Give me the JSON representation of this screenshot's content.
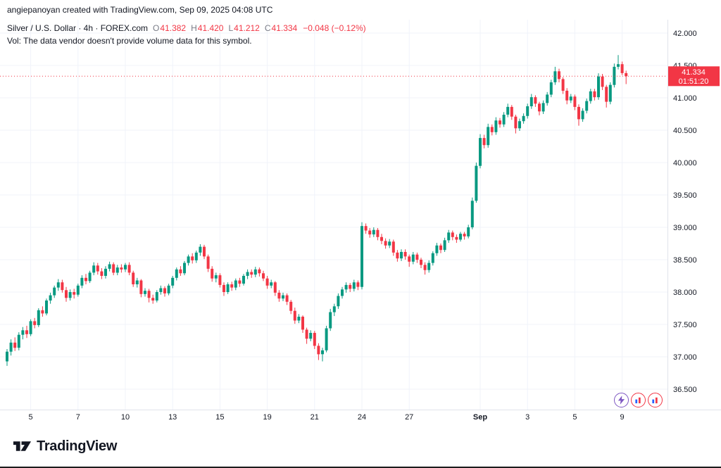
{
  "topbar": {
    "attribution": "angiepanoyan created with TradingView.com, Sep 09, 2025 04:08 UTC"
  },
  "legend": {
    "title": "Silver / U.S. Dollar · 4h · FOREX.com",
    "ohlc": [
      {
        "key": "O",
        "value": "41.382"
      },
      {
        "key": "H",
        "value": "41.420"
      },
      {
        "key": "L",
        "value": "41.212"
      },
      {
        "key": "C",
        "value": "41.334"
      }
    ],
    "change": "−0.048 (−0.12%)",
    "vol_note": "Vol: The data vendor doesn't provide volume data for this symbol."
  },
  "price_axis": {
    "labels": [
      {
        "p": 42.0,
        "t": "42.000"
      },
      {
        "p": 41.5,
        "t": "41.500"
      },
      {
        "p": 41.0,
        "t": "41.000"
      },
      {
        "p": 40.5,
        "t": "40.500"
      },
      {
        "p": 40.0,
        "t": "40.000"
      },
      {
        "p": 39.5,
        "t": "39.500"
      },
      {
        "p": 39.0,
        "t": "39.000"
      },
      {
        "p": 38.5,
        "t": "38.500"
      },
      {
        "p": 38.0,
        "t": "38.000"
      },
      {
        "p": 37.5,
        "t": "37.500"
      },
      {
        "p": 37.0,
        "t": "37.000"
      },
      {
        "p": 36.5,
        "t": "36.500"
      }
    ]
  },
  "price_badge": {
    "price": "41.334",
    "countdown": "01:51:20",
    "color": "#f23645"
  },
  "time_axis": {
    "labels": [
      {
        "i": 6,
        "t": "5"
      },
      {
        "i": 18,
        "t": "7"
      },
      {
        "i": 30,
        "t": "10"
      },
      {
        "i": 42,
        "t": "13"
      },
      {
        "i": 54,
        "t": "15"
      },
      {
        "i": 66,
        "t": "19"
      },
      {
        "i": 78,
        "t": "21"
      },
      {
        "i": 90,
        "t": "24"
      },
      {
        "i": 102,
        "t": "27"
      },
      {
        "i": 120,
        "t": "Sep",
        "bold": true
      },
      {
        "i": 132,
        "t": "3"
      },
      {
        "i": 144,
        "t": "5"
      },
      {
        "i": 156,
        "t": "9"
      }
    ]
  },
  "chart_data": {
    "type": "candlestick",
    "symbol": "Silver / U.S. Dollar",
    "timeframe": "4h",
    "exchange": "FOREX.com",
    "up_color": "#089981",
    "down_color": "#f23645",
    "grid_color": "#f0f3fa",
    "last_price": 41.334,
    "last_ohlc": {
      "open": 41.382,
      "high": 41.42,
      "low": 41.212,
      "close": 41.334
    },
    "change": -0.048,
    "change_pct": -0.12,
    "y_range": [
      36.185,
      42.207
    ],
    "gridlines": [
      36.5,
      37.0,
      37.5,
      38.0,
      38.5,
      39.0,
      39.5,
      40.0,
      40.5,
      41.0,
      41.5,
      42.0
    ],
    "candles": [
      [
        36.93,
        37.12,
        36.86,
        37.08
      ],
      [
        37.08,
        37.27,
        37.02,
        37.22
      ],
      [
        37.22,
        37.3,
        37.09,
        37.14
      ],
      [
        37.14,
        37.38,
        37.1,
        37.34
      ],
      [
        37.34,
        37.46,
        37.27,
        37.41
      ],
      [
        37.41,
        37.48,
        37.29,
        37.35
      ],
      [
        37.35,
        37.58,
        37.32,
        37.55
      ],
      [
        37.55,
        37.6,
        37.44,
        37.49
      ],
      [
        37.49,
        37.75,
        37.46,
        37.72
      ],
      [
        37.72,
        37.78,
        37.62,
        37.67
      ],
      [
        37.67,
        37.9,
        37.64,
        37.87
      ],
      [
        37.87,
        37.99,
        37.82,
        37.95
      ],
      [
        37.95,
        38.1,
        37.91,
        38.07
      ],
      [
        38.07,
        38.2,
        38.02,
        38.15
      ],
      [
        38.15,
        38.19,
        37.99,
        38.03
      ],
      [
        38.03,
        38.08,
        37.85,
        37.91
      ],
      [
        37.91,
        38.04,
        37.87,
        38.0
      ],
      [
        38.0,
        38.05,
        37.9,
        37.96
      ],
      [
        37.96,
        38.13,
        37.93,
        38.1
      ],
      [
        38.1,
        38.26,
        38.06,
        38.22
      ],
      [
        38.22,
        38.28,
        38.12,
        38.17
      ],
      [
        38.17,
        38.33,
        38.14,
        38.3
      ],
      [
        38.3,
        38.46,
        38.26,
        38.41
      ],
      [
        38.41,
        38.45,
        38.27,
        38.32
      ],
      [
        38.32,
        38.37,
        38.2,
        38.25
      ],
      [
        38.25,
        38.4,
        38.21,
        38.36
      ],
      [
        38.36,
        38.47,
        38.32,
        38.43
      ],
      [
        38.43,
        38.46,
        38.26,
        38.3
      ],
      [
        38.3,
        38.42,
        38.26,
        38.38
      ],
      [
        38.38,
        38.43,
        38.3,
        38.35
      ],
      [
        38.35,
        38.45,
        38.31,
        38.42
      ],
      [
        38.42,
        38.46,
        38.26,
        38.3
      ],
      [
        38.3,
        38.33,
        38.08,
        38.12
      ],
      [
        38.12,
        38.22,
        38.07,
        38.18
      ],
      [
        38.18,
        38.2,
        37.92,
        37.97
      ],
      [
        37.97,
        38.06,
        37.93,
        38.02
      ],
      [
        38.02,
        38.05,
        37.84,
        37.91
      ],
      [
        37.91,
        37.96,
        37.82,
        37.87
      ],
      [
        37.87,
        38.03,
        37.84,
        38.0
      ],
      [
        38.0,
        38.1,
        37.96,
        38.06
      ],
      [
        38.06,
        38.09,
        37.93,
        37.98
      ],
      [
        37.98,
        38.13,
        37.95,
        38.1
      ],
      [
        38.1,
        38.25,
        38.06,
        38.22
      ],
      [
        38.22,
        38.38,
        38.18,
        38.35
      ],
      [
        38.35,
        38.4,
        38.25,
        38.29
      ],
      [
        38.29,
        38.48,
        38.26,
        38.45
      ],
      [
        38.45,
        38.58,
        38.41,
        38.55
      ],
      [
        38.55,
        38.6,
        38.44,
        38.49
      ],
      [
        38.49,
        38.64,
        38.45,
        38.61
      ],
      [
        38.61,
        38.74,
        38.56,
        38.7
      ],
      [
        38.7,
        38.73,
        38.51,
        38.55
      ],
      [
        38.55,
        38.58,
        38.31,
        38.36
      ],
      [
        38.36,
        38.4,
        38.16,
        38.21
      ],
      [
        38.21,
        38.3,
        38.15,
        38.26
      ],
      [
        38.26,
        38.29,
        38.07,
        38.11
      ],
      [
        38.11,
        38.15,
        37.94,
        38.0
      ],
      [
        38.0,
        38.15,
        37.97,
        38.12
      ],
      [
        38.12,
        38.16,
        38.02,
        38.07
      ],
      [
        38.07,
        38.21,
        38.03,
        38.18
      ],
      [
        38.18,
        38.22,
        38.08,
        38.13
      ],
      [
        38.13,
        38.28,
        38.1,
        38.25
      ],
      [
        38.25,
        38.35,
        38.2,
        38.31
      ],
      [
        38.31,
        38.35,
        38.22,
        38.27
      ],
      [
        38.27,
        38.39,
        38.23,
        38.35
      ],
      [
        38.35,
        38.38,
        38.24,
        38.29
      ],
      [
        38.29,
        38.33,
        38.17,
        38.21
      ],
      [
        38.21,
        38.25,
        38.05,
        38.1
      ],
      [
        38.1,
        38.19,
        38.06,
        38.15
      ],
      [
        38.15,
        38.17,
        37.94,
        37.99
      ],
      [
        37.99,
        38.03,
        37.85,
        37.9
      ],
      [
        37.9,
        37.99,
        37.86,
        37.95
      ],
      [
        37.95,
        37.98,
        37.8,
        37.85
      ],
      [
        37.85,
        37.88,
        37.66,
        37.71
      ],
      [
        37.71,
        37.76,
        37.51,
        37.56
      ],
      [
        37.56,
        37.66,
        37.52,
        37.62
      ],
      [
        37.62,
        37.64,
        37.37,
        37.42
      ],
      [
        37.42,
        37.45,
        37.2,
        37.28
      ],
      [
        37.28,
        37.41,
        37.24,
        37.37
      ],
      [
        37.37,
        37.4,
        37.12,
        37.17
      ],
      [
        37.17,
        37.21,
        36.95,
        37.04
      ],
      [
        37.04,
        37.14,
        36.93,
        37.1
      ],
      [
        37.1,
        37.48,
        37.07,
        37.44
      ],
      [
        37.44,
        37.74,
        37.4,
        37.69
      ],
      [
        37.69,
        37.82,
        37.63,
        37.78
      ],
      [
        37.78,
        37.98,
        37.74,
        37.94
      ],
      [
        37.94,
        38.08,
        37.9,
        38.04
      ],
      [
        38.04,
        38.15,
        37.99,
        38.11
      ],
      [
        38.11,
        38.14,
        38.0,
        38.05
      ],
      [
        38.05,
        38.19,
        38.01,
        38.15
      ],
      [
        38.15,
        38.18,
        38.03,
        38.08
      ],
      [
        38.08,
        39.08,
        38.04,
        39.02
      ],
      [
        39.02,
        39.06,
        38.9,
        38.95
      ],
      [
        38.95,
        38.99,
        38.84,
        38.89
      ],
      [
        38.89,
        39.0,
        38.85,
        38.96
      ],
      [
        38.96,
        38.99,
        38.8,
        38.85
      ],
      [
        38.85,
        38.9,
        38.74,
        38.79
      ],
      [
        38.79,
        38.83,
        38.67,
        38.72
      ],
      [
        38.72,
        38.82,
        38.68,
        38.78
      ],
      [
        38.78,
        38.81,
        38.56,
        38.61
      ],
      [
        38.61,
        38.65,
        38.47,
        38.52
      ],
      [
        38.52,
        38.66,
        38.48,
        38.62
      ],
      [
        38.62,
        38.66,
        38.5,
        38.55
      ],
      [
        38.55,
        38.58,
        38.39,
        38.47
      ],
      [
        38.47,
        38.62,
        38.43,
        38.58
      ],
      [
        38.58,
        38.61,
        38.45,
        38.5
      ],
      [
        38.5,
        38.53,
        38.37,
        38.42
      ],
      [
        38.42,
        38.46,
        38.27,
        38.34
      ],
      [
        38.34,
        38.49,
        38.3,
        38.45
      ],
      [
        38.45,
        38.63,
        38.41,
        38.6
      ],
      [
        38.6,
        38.76,
        38.56,
        38.72
      ],
      [
        38.72,
        38.75,
        38.6,
        38.65
      ],
      [
        38.65,
        38.84,
        38.62,
        38.8
      ],
      [
        38.8,
        38.96,
        38.76,
        38.92
      ],
      [
        38.92,
        38.95,
        38.8,
        38.85
      ],
      [
        38.85,
        38.89,
        38.76,
        38.81
      ],
      [
        38.81,
        38.93,
        38.78,
        38.9
      ],
      [
        38.9,
        38.93,
        38.81,
        38.86
      ],
      [
        38.86,
        39.04,
        38.83,
        39.0
      ],
      [
        39.0,
        39.46,
        38.97,
        39.41
      ],
      [
        39.41,
        40.0,
        39.38,
        39.95
      ],
      [
        39.95,
        40.44,
        39.91,
        40.38
      ],
      [
        40.38,
        40.43,
        40.22,
        40.27
      ],
      [
        40.27,
        40.6,
        40.23,
        40.55
      ],
      [
        40.55,
        40.59,
        40.42,
        40.47
      ],
      [
        40.47,
        40.7,
        40.43,
        40.65
      ],
      [
        40.65,
        40.69,
        40.54,
        40.59
      ],
      [
        40.59,
        40.78,
        40.55,
        40.74
      ],
      [
        40.74,
        40.91,
        40.7,
        40.86
      ],
      [
        40.86,
        40.89,
        40.66,
        40.71
      ],
      [
        40.71,
        40.74,
        40.45,
        40.53
      ],
      [
        40.53,
        40.68,
        40.49,
        40.64
      ],
      [
        40.64,
        40.76,
        40.6,
        40.72
      ],
      [
        40.72,
        40.91,
        40.68,
        40.87
      ],
      [
        40.87,
        41.06,
        40.83,
        41.01
      ],
      [
        41.01,
        41.04,
        40.86,
        40.91
      ],
      [
        40.91,
        40.94,
        40.73,
        40.79
      ],
      [
        40.79,
        40.96,
        40.75,
        40.92
      ],
      [
        40.92,
        41.09,
        40.88,
        41.05
      ],
      [
        41.05,
        41.28,
        41.01,
        41.24
      ],
      [
        41.24,
        41.48,
        41.2,
        41.41
      ],
      [
        41.41,
        41.45,
        41.24,
        41.29
      ],
      [
        41.29,
        41.32,
        41.06,
        41.11
      ],
      [
        41.11,
        41.15,
        40.9,
        40.96
      ],
      [
        40.96,
        41.06,
        40.92,
        41.02
      ],
      [
        41.02,
        41.05,
        40.81,
        40.86
      ],
      [
        40.86,
        40.9,
        40.57,
        40.67
      ],
      [
        40.67,
        40.84,
        40.63,
        40.8
      ],
      [
        40.8,
        40.99,
        40.76,
        40.95
      ],
      [
        40.95,
        41.14,
        40.91,
        41.1
      ],
      [
        41.1,
        41.14,
        40.96,
        41.01
      ],
      [
        41.01,
        41.38,
        40.97,
        41.33
      ],
      [
        41.33,
        41.37,
        41.12,
        41.17
      ],
      [
        41.17,
        41.2,
        40.85,
        40.94
      ],
      [
        40.94,
        41.24,
        40.9,
        41.2
      ],
      [
        41.2,
        41.53,
        41.16,
        41.48
      ],
      [
        41.48,
        41.66,
        41.44,
        41.52
      ],
      [
        41.52,
        41.56,
        41.35,
        41.382
      ],
      [
        41.382,
        41.42,
        41.212,
        41.334
      ]
    ]
  },
  "idea_icons": [
    {
      "name": "lightning-icon",
      "style": "purple"
    },
    {
      "name": "bar-chart-icon",
      "style": "red"
    },
    {
      "name": "bar-chart-icon-2",
      "style": "red"
    }
  ],
  "footer": {
    "brand": "TradingView"
  }
}
